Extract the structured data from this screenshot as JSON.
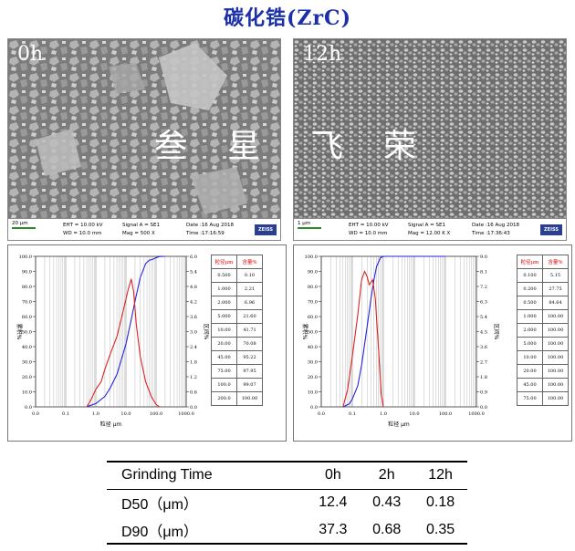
{
  "title": "碳化锆(ZrC)",
  "sem": [
    {
      "time_label": "0h",
      "overlay_chars": [
        "叁",
        "星"
      ],
      "info": {
        "scale": "20 µm",
        "eht": "EHT = 10.00 kV",
        "wd": "WD = 10.0 mm",
        "signal": "Signal A = SE1",
        "mag": "Mag =     500 X",
        "date": "Date :16 Aug 2018",
        "time": "Time :17:16:59",
        "logo": "ZEISS"
      }
    },
    {
      "time_label": "12h",
      "overlay_chars": [
        "飞",
        "荣"
      ],
      "info": {
        "scale": "1 µm",
        "eht": "EHT = 10.00 kV",
        "wd": "WD = 10.0 mm",
        "signal": "Signal A = SE1",
        "mag": "Mag =  12.00 K X",
        "date": "Date :16 Aug 2018",
        "time": "Time :17:36:43",
        "logo": "ZEISS"
      }
    }
  ],
  "chart_data": [
    {
      "type": "line",
      "xscale": "log",
      "xlim": [
        0.01,
        1000
      ],
      "x_ticks": [
        "0.0",
        "0.1",
        "1.0",
        "10.0",
        "100.0",
        "1000.0"
      ],
      "ylim_left": [
        0,
        100
      ],
      "y_ticks_left": [
        "0.0",
        "10.0",
        "20.0",
        "30.0",
        "40.0",
        "50.0",
        "60.0",
        "70.0",
        "80.0",
        "90.0",
        "100.0"
      ],
      "ylim_right": [
        0,
        6
      ],
      "y_ticks_right": [
        "0.0",
        "0.6",
        "1.2",
        "1.8",
        "2.4",
        "3.0",
        "3.6",
        "4.2",
        "4.8",
        "5.4",
        "6.0"
      ],
      "ylabel_left": "累积%",
      "ylabel_right": "区间%",
      "xlabel": "粒径 μm",
      "series": [
        {
          "axis": "left",
          "color": "#2222dd",
          "x": [
            0.5,
            1.0,
            2.0,
            3.0,
            5.0,
            10.0,
            15.0,
            20.0,
            30.0,
            45.0,
            60.0,
            75.0,
            100.0,
            130.0,
            200.0
          ],
          "y": [
            0.1,
            2.21,
            6.96,
            12.5,
            21.6,
            41.71,
            58.0,
            70.08,
            86.0,
            95.22,
            97.5,
            97.95,
            99.07,
            99.9,
            100.0
          ]
        },
        {
          "axis": "right",
          "color": "#dd2222",
          "x": [
            0.5,
            0.7,
            1.0,
            1.5,
            2.0,
            3.0,
            5.0,
            8.0,
            12.0,
            15.0,
            18.0,
            22.0,
            30.0,
            45.0,
            70.0,
            100.0,
            130.0
          ],
          "y": [
            0.0,
            0.3,
            0.7,
            1.0,
            1.5,
            2.1,
            2.8,
            3.8,
            4.7,
            5.1,
            4.6,
            3.3,
            2.0,
            1.0,
            0.4,
            0.1,
            0.0
          ]
        }
      ],
      "table": {
        "headers": [
          "粒径μm",
          "含量%"
        ],
        "rows": [
          [
            "0.500",
            "0.10"
          ],
          [
            "1.000",
            "2.21"
          ],
          [
            "2.000",
            "6.96"
          ],
          [
            "5.000",
            "21.60"
          ],
          [
            "10.00",
            "41.71"
          ],
          [
            "20.00",
            "70.08"
          ],
          [
            "45.00",
            "95.22"
          ],
          [
            "75.00",
            "97.95"
          ],
          [
            "100.0",
            "99.07"
          ],
          [
            "200.0",
            "100.00"
          ]
        ]
      }
    },
    {
      "type": "line",
      "xscale": "log",
      "xlim": [
        0.01,
        1000
      ],
      "x_ticks": [
        "0.0",
        "0.1",
        "1.0",
        "10.0",
        "100.0",
        "1000.0"
      ],
      "ylim_left": [
        0,
        100
      ],
      "y_ticks_left": [
        "0.0",
        "10.0",
        "20.0",
        "30.0",
        "40.0",
        "50.0",
        "60.0",
        "70.0",
        "80.0",
        "90.0",
        "100.0"
      ],
      "ylim_right": [
        0,
        9
      ],
      "y_ticks_right": [
        "0.0",
        "0.9",
        "1.8",
        "2.7",
        "3.6",
        "4.5",
        "5.4",
        "6.3",
        "7.2",
        "8.1",
        "9.0"
      ],
      "ylabel_left": "累积%",
      "ylabel_right": "区间%",
      "xlabel": "粒径 μm",
      "series": [
        {
          "axis": "left",
          "color": "#2222dd",
          "x": [
            0.05,
            0.08,
            0.1,
            0.15,
            0.2,
            0.3,
            0.4,
            0.5,
            0.6,
            0.8,
            1.0,
            100.0
          ],
          "y": [
            0.0,
            2.0,
            5.15,
            14.0,
            27.75,
            53.0,
            72.0,
            84.64,
            93.0,
            99.0,
            100.0,
            100.0
          ]
        },
        {
          "axis": "right",
          "color": "#dd2222",
          "x": [
            0.05,
            0.07,
            0.1,
            0.15,
            0.2,
            0.25,
            0.3,
            0.35,
            0.45,
            0.55,
            0.7,
            0.85,
            1.0
          ],
          "y": [
            0.0,
            1.0,
            3.0,
            5.5,
            7.6,
            8.1,
            7.8,
            7.3,
            7.6,
            6.5,
            3.5,
            0.8,
            0.0
          ]
        }
      ],
      "table": {
        "headers": [
          "粒径μm",
          "含量%"
        ],
        "rows": [
          [
            "0.100",
            "5.15"
          ],
          [
            "0.200",
            "27.75"
          ],
          [
            "0.500",
            "84.64"
          ],
          [
            "1.000",
            "100.00"
          ],
          [
            "2.000",
            "100.00"
          ],
          [
            "5.000",
            "100.00"
          ],
          [
            "10.00",
            "100.00"
          ],
          [
            "20.00",
            "100.00"
          ],
          [
            "45.00",
            "100.00"
          ],
          [
            "75.00",
            "100.00"
          ]
        ]
      }
    }
  ],
  "results": {
    "headers": [
      "Grinding Time",
      "0h",
      "2h",
      "12h"
    ],
    "rows": [
      [
        "D50（μm）",
        "12.4",
        "0.43",
        "0.18"
      ],
      [
        "D90（μm）",
        "37.3",
        "0.68",
        "0.35"
      ]
    ]
  }
}
